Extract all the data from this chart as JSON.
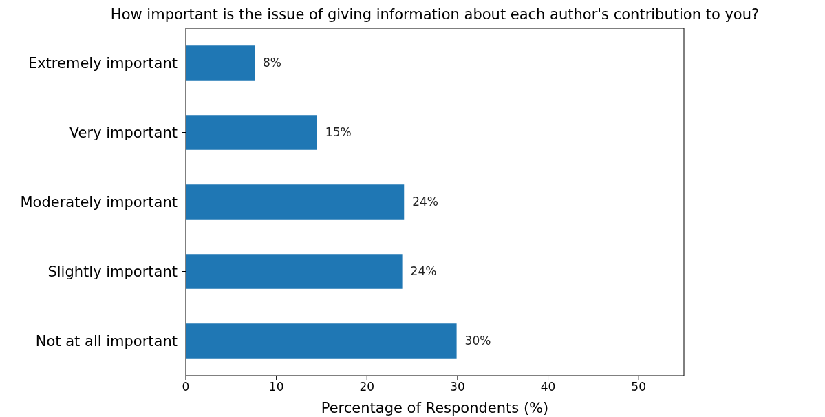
{
  "chart_data": {
    "type": "bar",
    "orientation": "horizontal",
    "title": "How important is the issue of giving information about each author's contribution to you?",
    "xlabel": "Percentage of Respondents (%)",
    "categories": [
      "Extremely important",
      "Very important",
      "Moderately important",
      "Slightly important",
      "Not at all important"
    ],
    "values": [
      7.6,
      14.5,
      24.1,
      23.9,
      29.9
    ],
    "value_labels": [
      "8%",
      "15%",
      "24%",
      "24%",
      "30%"
    ],
    "color": "#1f77b4",
    "xlim": [
      0,
      55
    ],
    "xticks": [
      0,
      10,
      20,
      30,
      40,
      50
    ],
    "grid": false
  }
}
